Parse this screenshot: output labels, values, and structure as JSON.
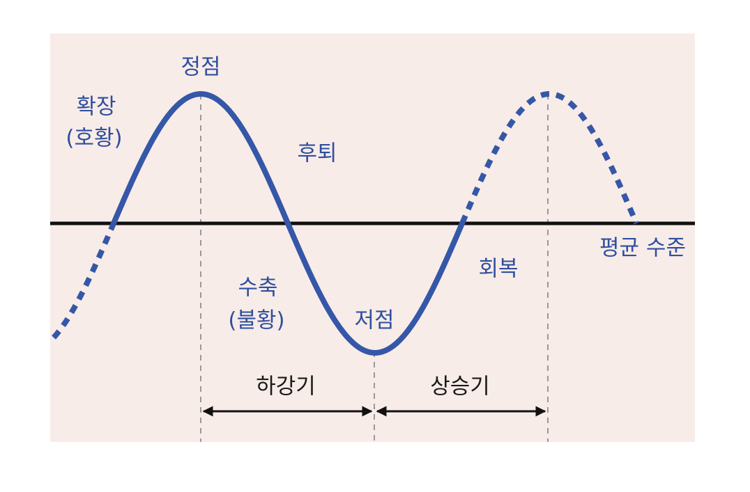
{
  "labels": {
    "expansion": "확장",
    "expansion_note": "(호황)",
    "peak": "정점",
    "recession": "후퇴",
    "contraction": "수축",
    "contraction_note": "(불황)",
    "trough": "저점",
    "recovery": "회복",
    "mean_level": "평균 수준",
    "falling_phase": "하강기",
    "rising_phase": "상승기"
  }
}
